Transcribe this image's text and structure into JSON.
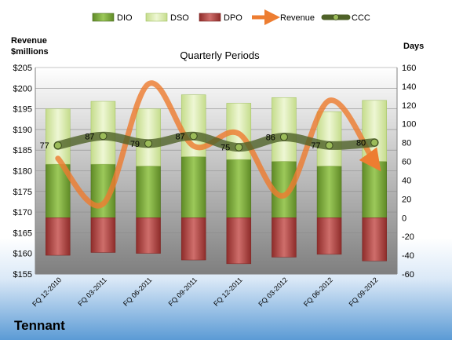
{
  "company": "Tennant",
  "chart_data": {
    "type": "bar",
    "title": "Quarterly Periods",
    "left_axis_label": [
      "Revenue",
      "$millions"
    ],
    "right_axis_label": "Days",
    "categories": [
      "FQ 12-2010",
      "FQ 03-2011",
      "FQ 06-2011",
      "FQ 09-2011",
      "FQ 12-2011",
      "FQ 03-2012",
      "FQ 06-2012",
      "FQ 09-2012"
    ],
    "left_axis": {
      "min": 155,
      "max": 205,
      "step": 5,
      "ticks": [
        "$155",
        "$160",
        "$165",
        "$170",
        "$175",
        "$180",
        "$185",
        "$190",
        "$195",
        "$200",
        "$205"
      ]
    },
    "right_axis": {
      "min": -60,
      "max": 160,
      "step": 20,
      "ticks": [
        "-60",
        "-40",
        "-20",
        "0",
        "20",
        "40",
        "60",
        "80",
        "100",
        "120",
        "140",
        "160"
      ]
    },
    "legend": [
      "DIO",
      "DSO",
      "DPO",
      "Revenue",
      "CCC"
    ],
    "series": [
      {
        "name": "DIO",
        "axis": "right",
        "color": "#76a33a",
        "values": [
          57,
          57,
          55,
          65,
          62,
          60,
          55,
          60
        ]
      },
      {
        "name": "DSO",
        "axis": "right",
        "color": "#d9eaae",
        "values": [
          116,
          124,
          116,
          131,
          122,
          128,
          113,
          125
        ]
      },
      {
        "name": "DPO",
        "axis": "right",
        "color": "#c0504d",
        "values": [
          -40,
          -37,
          -38,
          -45,
          -49,
          -42,
          -39,
          -46
        ]
      },
      {
        "name": "Revenue",
        "axis": "left",
        "color": "#ed7d31",
        "values": [
          183,
          172,
          201,
          186,
          189,
          174,
          197,
          182
        ]
      },
      {
        "name": "CCC",
        "axis": "right",
        "color": "#4f6228",
        "values": [
          77,
          87,
          79,
          87,
          75,
          86,
          77,
          80
        ],
        "labels": [
          "77",
          "87",
          "79",
          "87",
          "75",
          "86",
          "77",
          "80"
        ]
      }
    ],
    "grid": true,
    "legend_position": "top"
  }
}
